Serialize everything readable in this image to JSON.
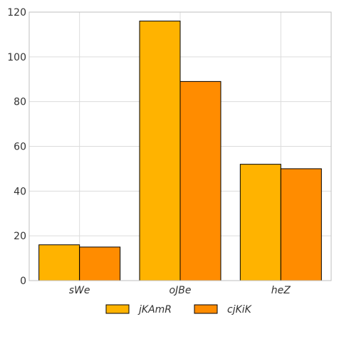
{
  "chart_data": {
    "type": "bar",
    "categories": [
      "sWe",
      "oJBe",
      "heZ"
    ],
    "series": [
      {
        "name": "jKAmR",
        "values": [
          16,
          116,
          52
        ],
        "color": "#ffb300"
      },
      {
        "name": "cjKiK",
        "values": [
          15,
          89,
          50
        ],
        "color": "#ff8c00"
      }
    ],
    "ylim": [
      0,
      120
    ],
    "yticks": [
      0,
      20,
      40,
      60,
      80,
      100,
      120
    ],
    "grid": true,
    "legend_position": "bottom-center",
    "title": "",
    "xlabel": "",
    "ylabel": ""
  }
}
